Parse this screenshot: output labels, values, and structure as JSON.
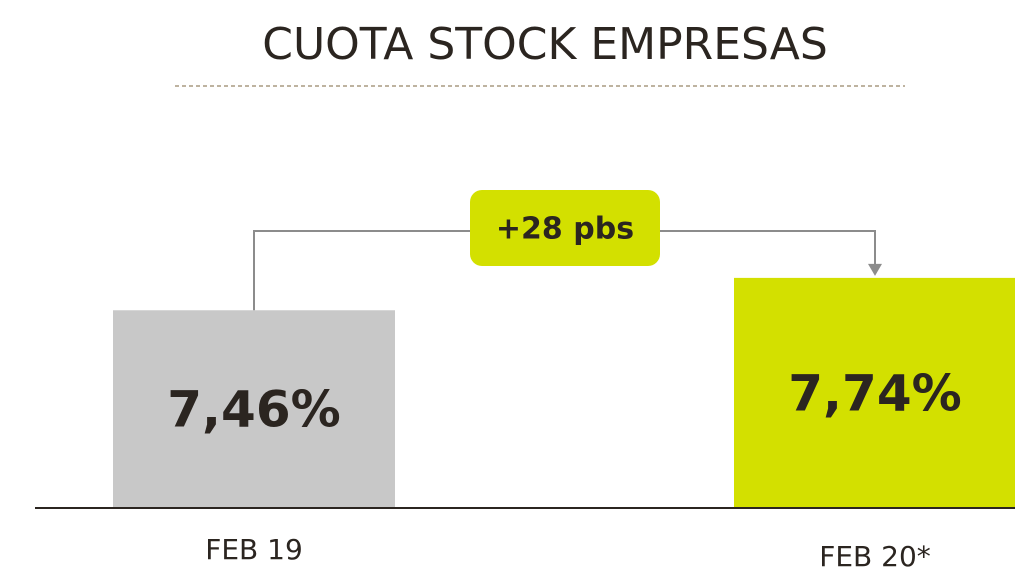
{
  "chart_data": {
    "type": "bar",
    "title": "CUOTA STOCK EMPRESAS",
    "categories": [
      "FEB 19",
      "FEB 20*"
    ],
    "values": [
      7.46,
      7.74
    ],
    "value_labels": [
      "7,46%",
      "7,74%"
    ],
    "colors": [
      "#c8c8c8",
      "#d3e000"
    ],
    "annotation": "+28 pbs",
    "annotation_color": "#d3e000",
    "ylim": [
      5.75,
      8.5
    ]
  }
}
